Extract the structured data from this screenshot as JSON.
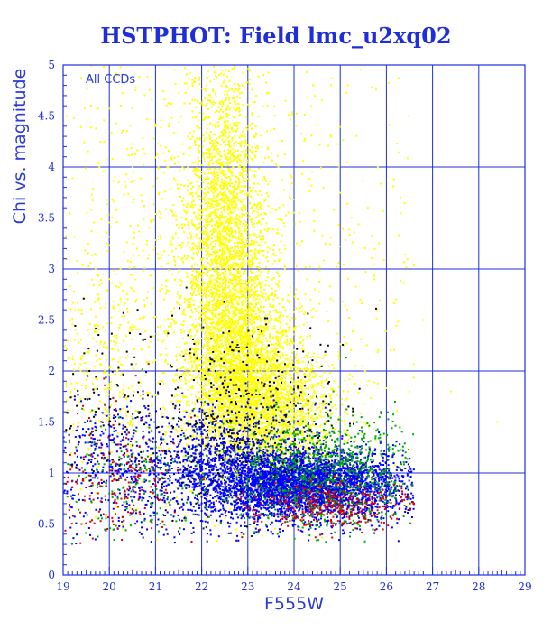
{
  "chart_data": {
    "type": "scatter",
    "title": "HSTPHOT: Field lmc_u2xq02",
    "xlabel": "F555W",
    "ylabel": "Chi vs. magnitude",
    "annotation": "All CCDs",
    "xlim": [
      19,
      29
    ],
    "ylim": [
      0,
      5
    ],
    "xticks": [
      19,
      20,
      21,
      22,
      23,
      24,
      25,
      26,
      27,
      28,
      29
    ],
    "yticks": [
      0,
      0.5,
      1,
      1.5,
      2,
      2.5,
      3,
      3.5,
      4,
      4.5,
      5
    ],
    "grid": true,
    "colors": {
      "frame": "#1f2fd8",
      "grid": "#1f2fd8",
      "text": "#1f2fd8"
    },
    "series": [
      {
        "color": "#ffff00",
        "points": [
          [
            22.1,
            4.8
          ],
          [
            22.4,
            4.5
          ],
          [
            22.6,
            4.3
          ],
          [
            22.8,
            4.0
          ],
          [
            22.3,
            3.8
          ],
          [
            22.5,
            3.5
          ],
          [
            22.9,
            3.2
          ],
          [
            22.2,
            3.0
          ],
          [
            22.7,
            2.8
          ],
          [
            23.1,
            2.6
          ],
          [
            22.4,
            2.4
          ],
          [
            22.8,
            2.2
          ],
          [
            23.3,
            2.0
          ],
          [
            23.5,
            1.8
          ],
          [
            22.6,
            1.7
          ],
          [
            23.0,
            1.5
          ],
          [
            21.5,
            3.4
          ],
          [
            20.6,
            3.2
          ],
          [
            19.7,
            3.0
          ],
          [
            19.4,
            2.6
          ],
          [
            20.2,
            2.2
          ],
          [
            21.2,
            2.5
          ],
          [
            24.2,
            2.3
          ],
          [
            24.6,
            1.9
          ],
          [
            25.1,
            1.6
          ],
          [
            26.5,
            1.8
          ],
          [
            27.4,
            1.8
          ],
          [
            28.4,
            1.5
          ],
          [
            26.8,
            2.5
          ],
          [
            25.6,
            3.6
          ],
          [
            24.8,
            4.8
          ],
          [
            19.6,
            4.6
          ],
          [
            20.5,
            4.0
          ],
          [
            21.0,
            4.4
          ],
          [
            23.8,
            3.0
          ],
          [
            22.3,
            2.6
          ]
        ],
        "density": [
          {
            "cx": 22.5,
            "cy": 3.2,
            "sx": 0.45,
            "sy": 0.9,
            "n": 2600
          },
          {
            "cx": 22.9,
            "cy": 2.0,
            "sx": 0.6,
            "sy": 0.45,
            "n": 2200
          },
          {
            "cx": 23.5,
            "cy": 1.6,
            "sx": 0.7,
            "sy": 0.3,
            "n": 1500
          },
          {
            "cx": 21.5,
            "cy": 3.0,
            "sx": 1.4,
            "sy": 1.2,
            "n": 900
          },
          {
            "cx": 24.5,
            "cy": 2.6,
            "sx": 2.2,
            "sy": 1.4,
            "n": 500
          },
          {
            "cx": 19.8,
            "cy": 2.0,
            "sx": 0.6,
            "sy": 0.6,
            "n": 250
          }
        ]
      },
      {
        "color": "#0000ff",
        "points": [
          [
            21.5,
            1.0
          ],
          [
            22.5,
            0.9
          ],
          [
            23.5,
            0.85
          ],
          [
            24.5,
            0.8
          ],
          [
            25.5,
            0.8
          ],
          [
            26.2,
            0.75
          ],
          [
            23.0,
            1.2
          ],
          [
            24.0,
            1.1
          ],
          [
            19.4,
            0.9
          ],
          [
            20.4,
            1.1
          ]
        ],
        "density": [
          {
            "cx": 24.3,
            "cy": 0.88,
            "sx": 1.1,
            "sy": 0.17,
            "n": 3400
          },
          {
            "cx": 22.6,
            "cy": 1.05,
            "sx": 0.9,
            "sy": 0.28,
            "n": 1200
          },
          {
            "cx": 20.2,
            "cy": 1.0,
            "sx": 0.8,
            "sy": 0.35,
            "n": 500
          }
        ]
      },
      {
        "color": "#00aa00",
        "points": [
          [
            25.0,
            1.4
          ],
          [
            25.7,
            1.2
          ],
          [
            26.2,
            0.6
          ],
          [
            24.0,
            1.5
          ],
          [
            20.0,
            0.8
          ]
        ],
        "density": [
          {
            "cx": 24.6,
            "cy": 1.0,
            "sx": 1.0,
            "sy": 0.3,
            "n": 900
          },
          {
            "cx": 20.5,
            "cy": 0.9,
            "sx": 1.0,
            "sy": 0.35,
            "n": 200
          }
        ]
      },
      {
        "color": "#dd0000",
        "points": [
          [
            25.2,
            0.55
          ],
          [
            24.5,
            0.6
          ],
          [
            20.0,
            1.2
          ],
          [
            19.4,
            0.5
          ]
        ],
        "density": [
          {
            "cx": 24.8,
            "cy": 0.68,
            "sx": 0.9,
            "sy": 0.12,
            "n": 350
          },
          {
            "cx": 20.0,
            "cy": 0.95,
            "sx": 0.8,
            "sy": 0.35,
            "n": 220
          }
        ]
      },
      {
        "color": "#000000",
        "points": [
          [
            22.3,
            2.0
          ],
          [
            23.5,
            1.8
          ],
          [
            19.5,
            1.4
          ]
        ],
        "density": [
          {
            "cx": 23.2,
            "cy": 1.6,
            "sx": 0.9,
            "sy": 0.45,
            "n": 300
          },
          {
            "cx": 20.3,
            "cy": 1.6,
            "sx": 1.0,
            "sy": 0.5,
            "n": 140
          }
        ]
      }
    ]
  }
}
